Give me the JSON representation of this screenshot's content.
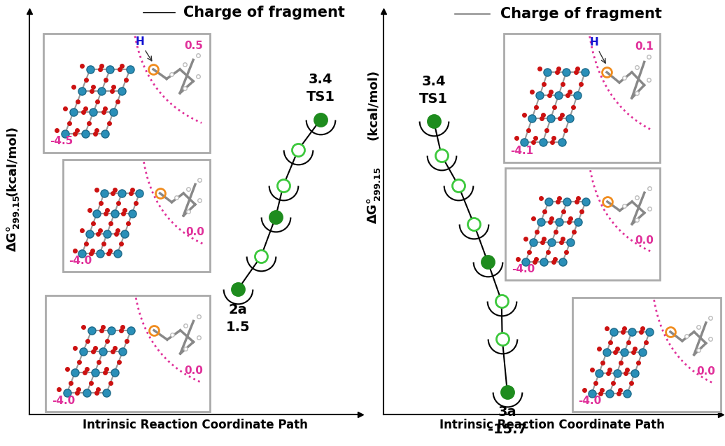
{
  "chart_data": [
    {
      "type": "line",
      "key": "Charge of fragment",
      "xlabel": "Intrinsic Reaction Coordinate Path",
      "ylabel": {
        "symbol": "ΔG°",
        "subscript": "299.15",
        "unit": "(kcal/mol)"
      },
      "x": [
        6.3,
        7.0,
        7.44,
        7.67,
        8.12,
        8.8
      ],
      "values": [
        1.5,
        1.87,
        2.31,
        2.66,
        3.06,
        3.4
      ],
      "colors": [
        "#1e8c1e",
        "#ffffff",
        "#1e8c1e",
        "#ffffff",
        "#ffffff",
        "#1e8c1e"
      ],
      "marker": "o",
      "line_style": "solid",
      "point_names": [
        "2a",
        null,
        null,
        null,
        null,
        "TS1"
      ],
      "value_labels": [
        "1.5",
        null,
        null,
        null,
        null,
        "3.4"
      ],
      "xlim": [
        0,
        10
      ],
      "ylim": [
        0.1,
        4.61
      ],
      "xticks": [],
      "yticks": [],
      "tick_labels": false,
      "structures": [
        {
          "atom_label": "H",
          "cluster_charge": -4.5,
          "fragment_charge": 0.5
        },
        {
          "cluster_charge": -4.0,
          "fragment_charge": 0.0
        },
        {
          "cluster_charge": -4.0,
          "fragment_charge": 0.0
        }
      ]
    },
    {
      "type": "line",
      "key": "Charge of fragment",
      "xlabel": "Intrinsic Reaction Coordinate Path",
      "ylabel": {
        "symbol": "ΔG°",
        "subscript": "299.15",
        "unit": "(kcal/mol)"
      },
      "x": [
        1.49,
        1.72,
        2.22,
        2.68,
        3.09,
        3.5,
        3.52,
        3.67
      ],
      "values": [
        3.4,
        0.98,
        -1.14,
        -3.86,
        -6.52,
        -9.28,
        -11.95,
        -15.7
      ],
      "colors": [
        "#1e8c1e",
        "#ffffff",
        "#ffffff",
        "#ffffff",
        "#1e8c1e",
        "#ffffff",
        "#ffffff",
        "#1e8c1e"
      ],
      "marker": "o",
      "line_style": "solid",
      "point_names": [
        "TS1",
        null,
        null,
        null,
        null,
        null,
        null,
        "3a"
      ],
      "value_labels": [
        "3.4",
        null,
        null,
        null,
        null,
        null,
        null,
        "-15.7"
      ],
      "xlim": [
        0,
        10
      ],
      "ylim": [
        -17.28,
        11.15
      ],
      "xticks": [],
      "yticks": [],
      "tick_labels": false,
      "structures": [
        {
          "atom_label": "H",
          "cluster_charge": -4.1,
          "fragment_charge": 0.1
        },
        {
          "cluster_charge": -4.0,
          "fragment_charge": 0.0
        },
        {
          "cluster_charge": -4.0,
          "fragment_charge": 0.0
        }
      ]
    }
  ]
}
